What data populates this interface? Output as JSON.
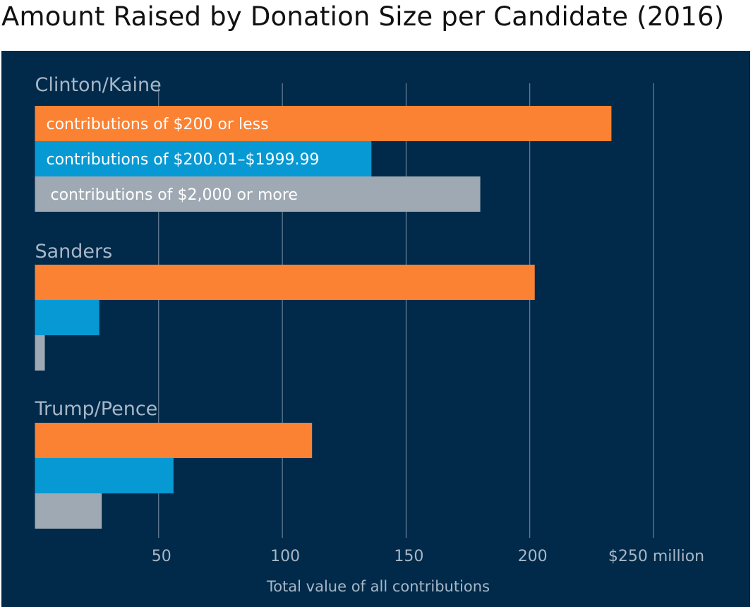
{
  "title": "Amount Raised by Donation Size per Candidate (2016)",
  "colors": {
    "background": "#012a4a",
    "gridline": "#7e93a8",
    "text_muted": "#a7b7c7",
    "bar_label": "#ffffff"
  },
  "chart_data": {
    "type": "bar",
    "orientation": "horizontal",
    "title": "Amount Raised by Donation Size per Candidate (2016)",
    "xlabel": "Total value of all contributions",
    "xlim": [
      0,
      270
    ],
    "xticks": [
      50,
      100,
      150,
      200,
      250
    ],
    "xtick_labels": [
      "50",
      "100",
      "150",
      "200",
      "$250 million"
    ],
    "grid": true,
    "categories": [
      "Clinton/Kaine",
      "Sanders",
      "Trump/Pence"
    ],
    "series": [
      {
        "name": "contributions of $200 or less",
        "color": "#fb8232",
        "values": [
          233,
          202,
          112
        ]
      },
      {
        "name": "contributions of $200.01–$1999.99",
        "color": "#0799d4",
        "values": [
          136,
          26,
          56
        ]
      },
      {
        "name": "contributions of $2,000 or more",
        "color": "#9fa9b3",
        "values": [
          180,
          4,
          27
        ]
      }
    ]
  }
}
